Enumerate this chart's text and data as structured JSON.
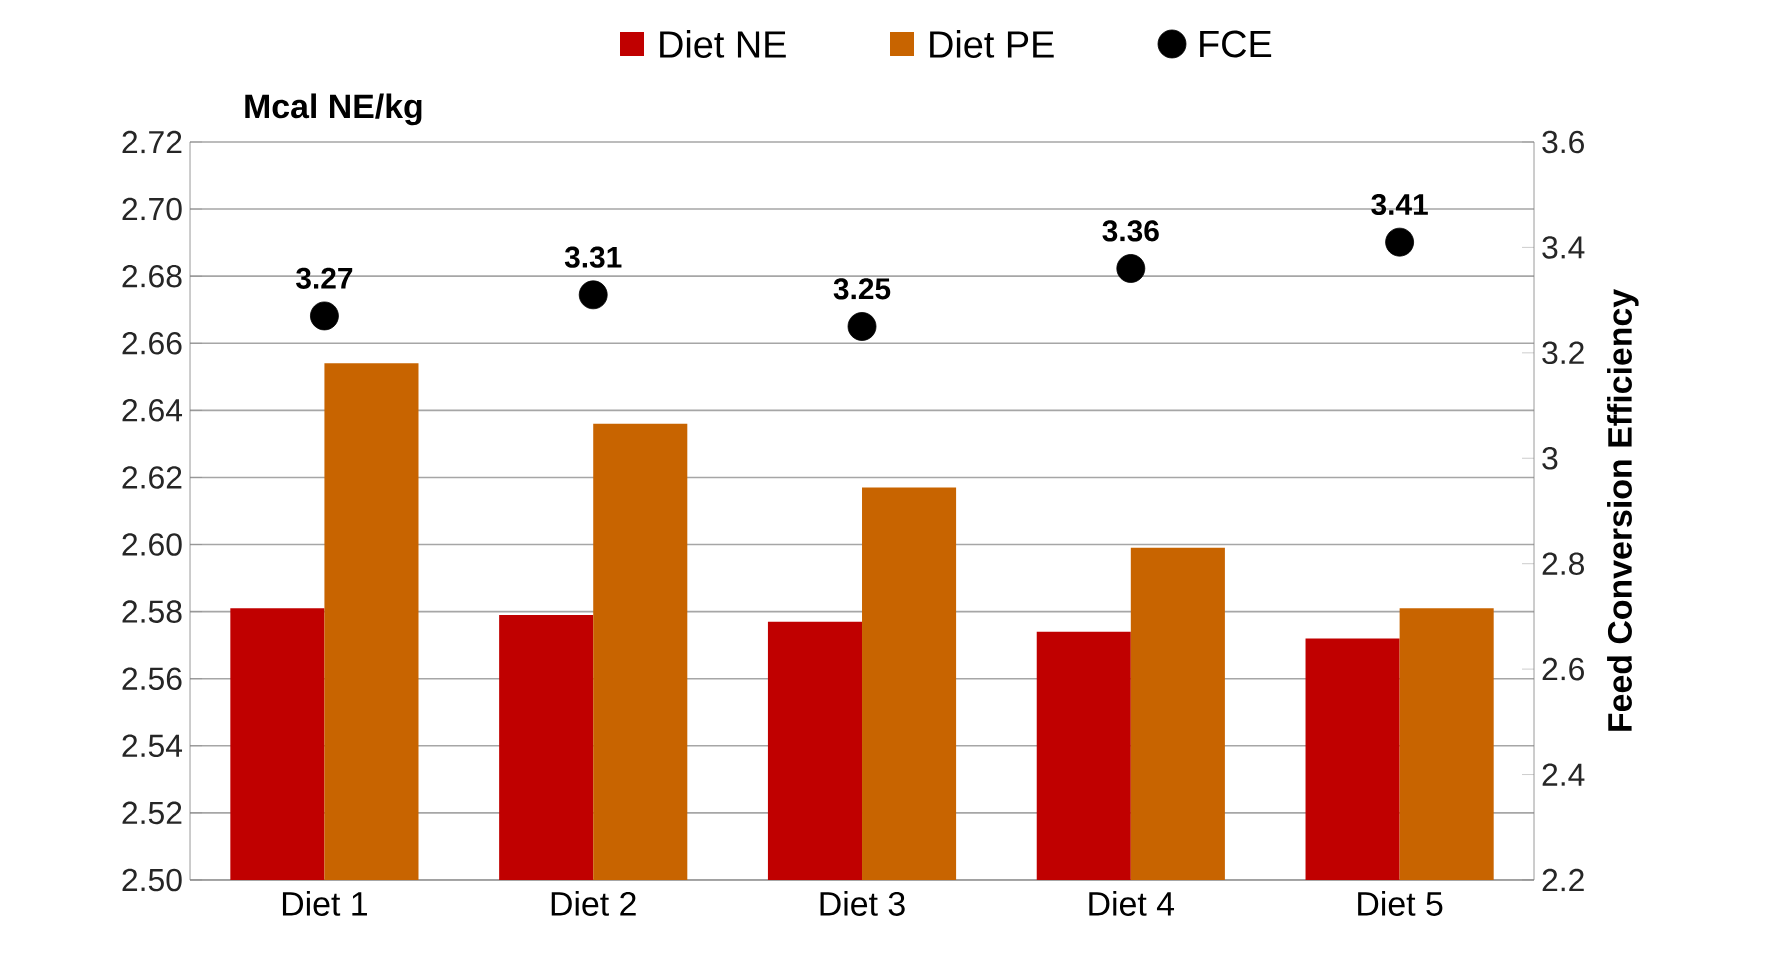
{
  "chart_data": {
    "type": "bar",
    "ylabel": "Mcal NE/kg",
    "y2label": "Feed Conversion Efficiency",
    "categories": [
      "Diet 1",
      "Diet 2",
      "Diet 3",
      "Diet 4",
      "Diet 5"
    ],
    "series": [
      {
        "name": "Diet NE",
        "color": "#c00000",
        "values": [
          2.581,
          2.579,
          2.577,
          2.574,
          2.572
        ]
      },
      {
        "name": "Diet PE",
        "color": "#c86400",
        "values": [
          2.654,
          2.636,
          2.617,
          2.599,
          2.581
        ]
      },
      {
        "name": "FCE",
        "type": "scatter",
        "axis": "y2",
        "color": "#000000",
        "marker": "circle",
        "values": [
          3.27,
          3.31,
          3.25,
          3.36,
          3.41
        ],
        "value_labels": [
          "3.27",
          "3.31",
          "3.25",
          "3.36",
          "3.41"
        ]
      }
    ],
    "ylim": [
      2.5,
      2.72
    ],
    "yticks": [
      {
        "value": 2.5,
        "label": "2.50"
      },
      {
        "value": 2.52,
        "label": "2.52"
      },
      {
        "value": 2.54,
        "label": "2.54"
      },
      {
        "value": 2.56,
        "label": "2.56"
      },
      {
        "value": 2.58,
        "label": "2.58"
      },
      {
        "value": 2.6,
        "label": "2.60"
      },
      {
        "value": 2.62,
        "label": "2.62"
      },
      {
        "value": 2.64,
        "label": "2.64"
      },
      {
        "value": 2.66,
        "label": "2.66"
      },
      {
        "value": 2.68,
        "label": "2.68"
      },
      {
        "value": 2.7,
        "label": "2.70"
      },
      {
        "value": 2.72,
        "label": "2.72"
      }
    ],
    "y2lim": [
      2.2,
      3.6
    ],
    "y2ticks": [
      2.2,
      2.4,
      2.6,
      2.8,
      3,
      3.2,
      3.4,
      3.6
    ],
    "grid": "y",
    "legend": "top"
  }
}
